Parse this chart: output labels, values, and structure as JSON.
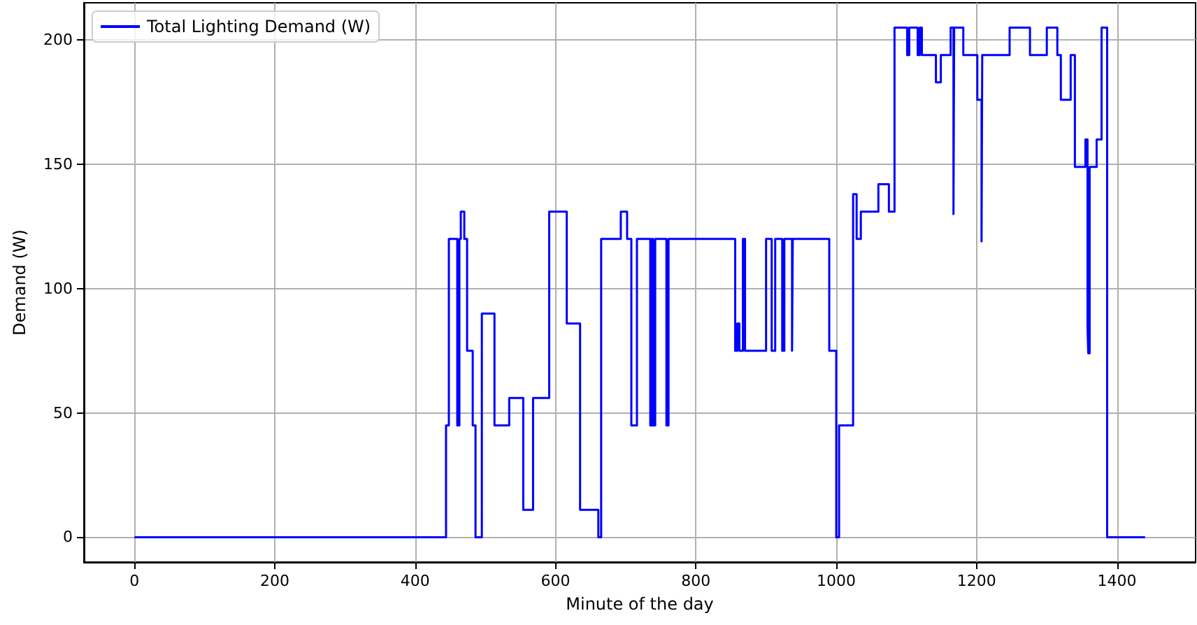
{
  "chart_data": {
    "type": "step",
    "xlabel": "Minute of the day",
    "ylabel": "Demand (W)",
    "xlim": [
      -72,
      1512
    ],
    "ylim": [
      -10,
      215
    ],
    "xticks": [
      0,
      200,
      400,
      600,
      800,
      1000,
      1200,
      1400
    ],
    "yticks": [
      0,
      50,
      100,
      150,
      200
    ],
    "grid": true,
    "legend": "top left",
    "line_style": "solid",
    "marker": "none",
    "series": [
      {
        "name": "Total Lighting Demand (W)",
        "color": "#0000ff",
        "x": [
          0,
          444,
          448,
          460,
          463,
          465,
          470,
          474,
          482,
          486,
          495,
          513,
          534,
          554,
          568,
          591,
          616,
          635,
          661,
          665,
          693,
          702,
          708,
          716,
          735,
          737,
          739,
          742,
          758,
          761,
          856,
          859,
          862,
          867,
          870,
          900,
          908,
          913,
          923,
          926,
          937,
          938,
          990,
          1000,
          1004,
          1024,
          1029,
          1035,
          1060,
          1075,
          1083,
          1101,
          1104,
          1116,
          1119,
          1122,
          1142,
          1149,
          1163,
          1167,
          1168,
          1181,
          1201,
          1207,
          1208,
          1247,
          1276,
          1300,
          1315,
          1320,
          1334,
          1340,
          1355,
          1358,
          1359,
          1361,
          1371,
          1378,
          1386,
          1440
        ],
        "values": [
          0,
          45,
          120,
          45,
          120,
          131,
          120,
          75,
          45,
          0,
          90,
          45,
          56,
          11,
          56,
          131,
          86,
          11,
          0,
          120,
          131,
          120,
          45,
          120,
          45,
          120,
          45,
          120,
          45,
          120,
          75,
          86,
          75,
          120,
          75,
          120,
          75,
          120,
          75,
          120,
          75,
          120,
          75,
          0,
          45,
          138,
          120,
          131,
          142,
          131,
          205,
          194,
          205,
          194,
          205,
          194,
          183,
          194,
          205,
          130,
          205,
          194,
          176,
          119,
          194,
          205,
          194,
          205,
          194,
          176,
          194,
          149,
          160,
          85,
          74,
          149,
          160,
          205,
          0,
          0
        ]
      }
    ]
  }
}
